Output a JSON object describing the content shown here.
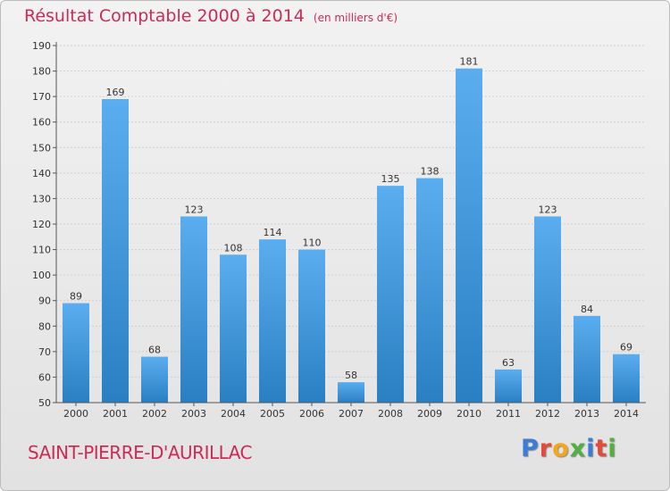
{
  "title": "Résultat Comptable 2000 à 2014",
  "unit": "(en milliers d'€)",
  "town": "SAINT-PIERRE-D'AURILLAC",
  "logo": {
    "letters": [
      {
        "ch": "P",
        "color": "#3a7dd8"
      },
      {
        "ch": "r",
        "color": "#e24a3b"
      },
      {
        "ch": "o",
        "color": "#f2a81c"
      },
      {
        "ch": "x",
        "color": "#52b043"
      },
      {
        "ch": "i",
        "color": "#3a7dd8"
      },
      {
        "ch": "t",
        "color": "#e24a3b"
      },
      {
        "ch": "i",
        "color": "#52b043"
      }
    ]
  },
  "colors": {
    "bar_top": "#5aaef0",
    "bar_bottom": "#2a7fc2",
    "title": "#cc2b55"
  },
  "chart_data": {
    "type": "bar",
    "categories": [
      "2000",
      "2001",
      "2002",
      "2003",
      "2004",
      "2005",
      "2006",
      "2007",
      "2008",
      "2009",
      "2010",
      "2011",
      "2012",
      "2013",
      "2014"
    ],
    "values": [
      89,
      169,
      68,
      123,
      108,
      114,
      110,
      58,
      135,
      138,
      181,
      63,
      123,
      84,
      69
    ],
    "yticks": [
      50,
      60,
      70,
      80,
      90,
      100,
      110,
      120,
      130,
      140,
      150,
      160,
      170,
      180,
      190
    ],
    "ylim": [
      50,
      190
    ],
    "grid": true,
    "title": "Résultat Comptable 2000 à 2014",
    "subtitle": "(en milliers d'€)"
  }
}
